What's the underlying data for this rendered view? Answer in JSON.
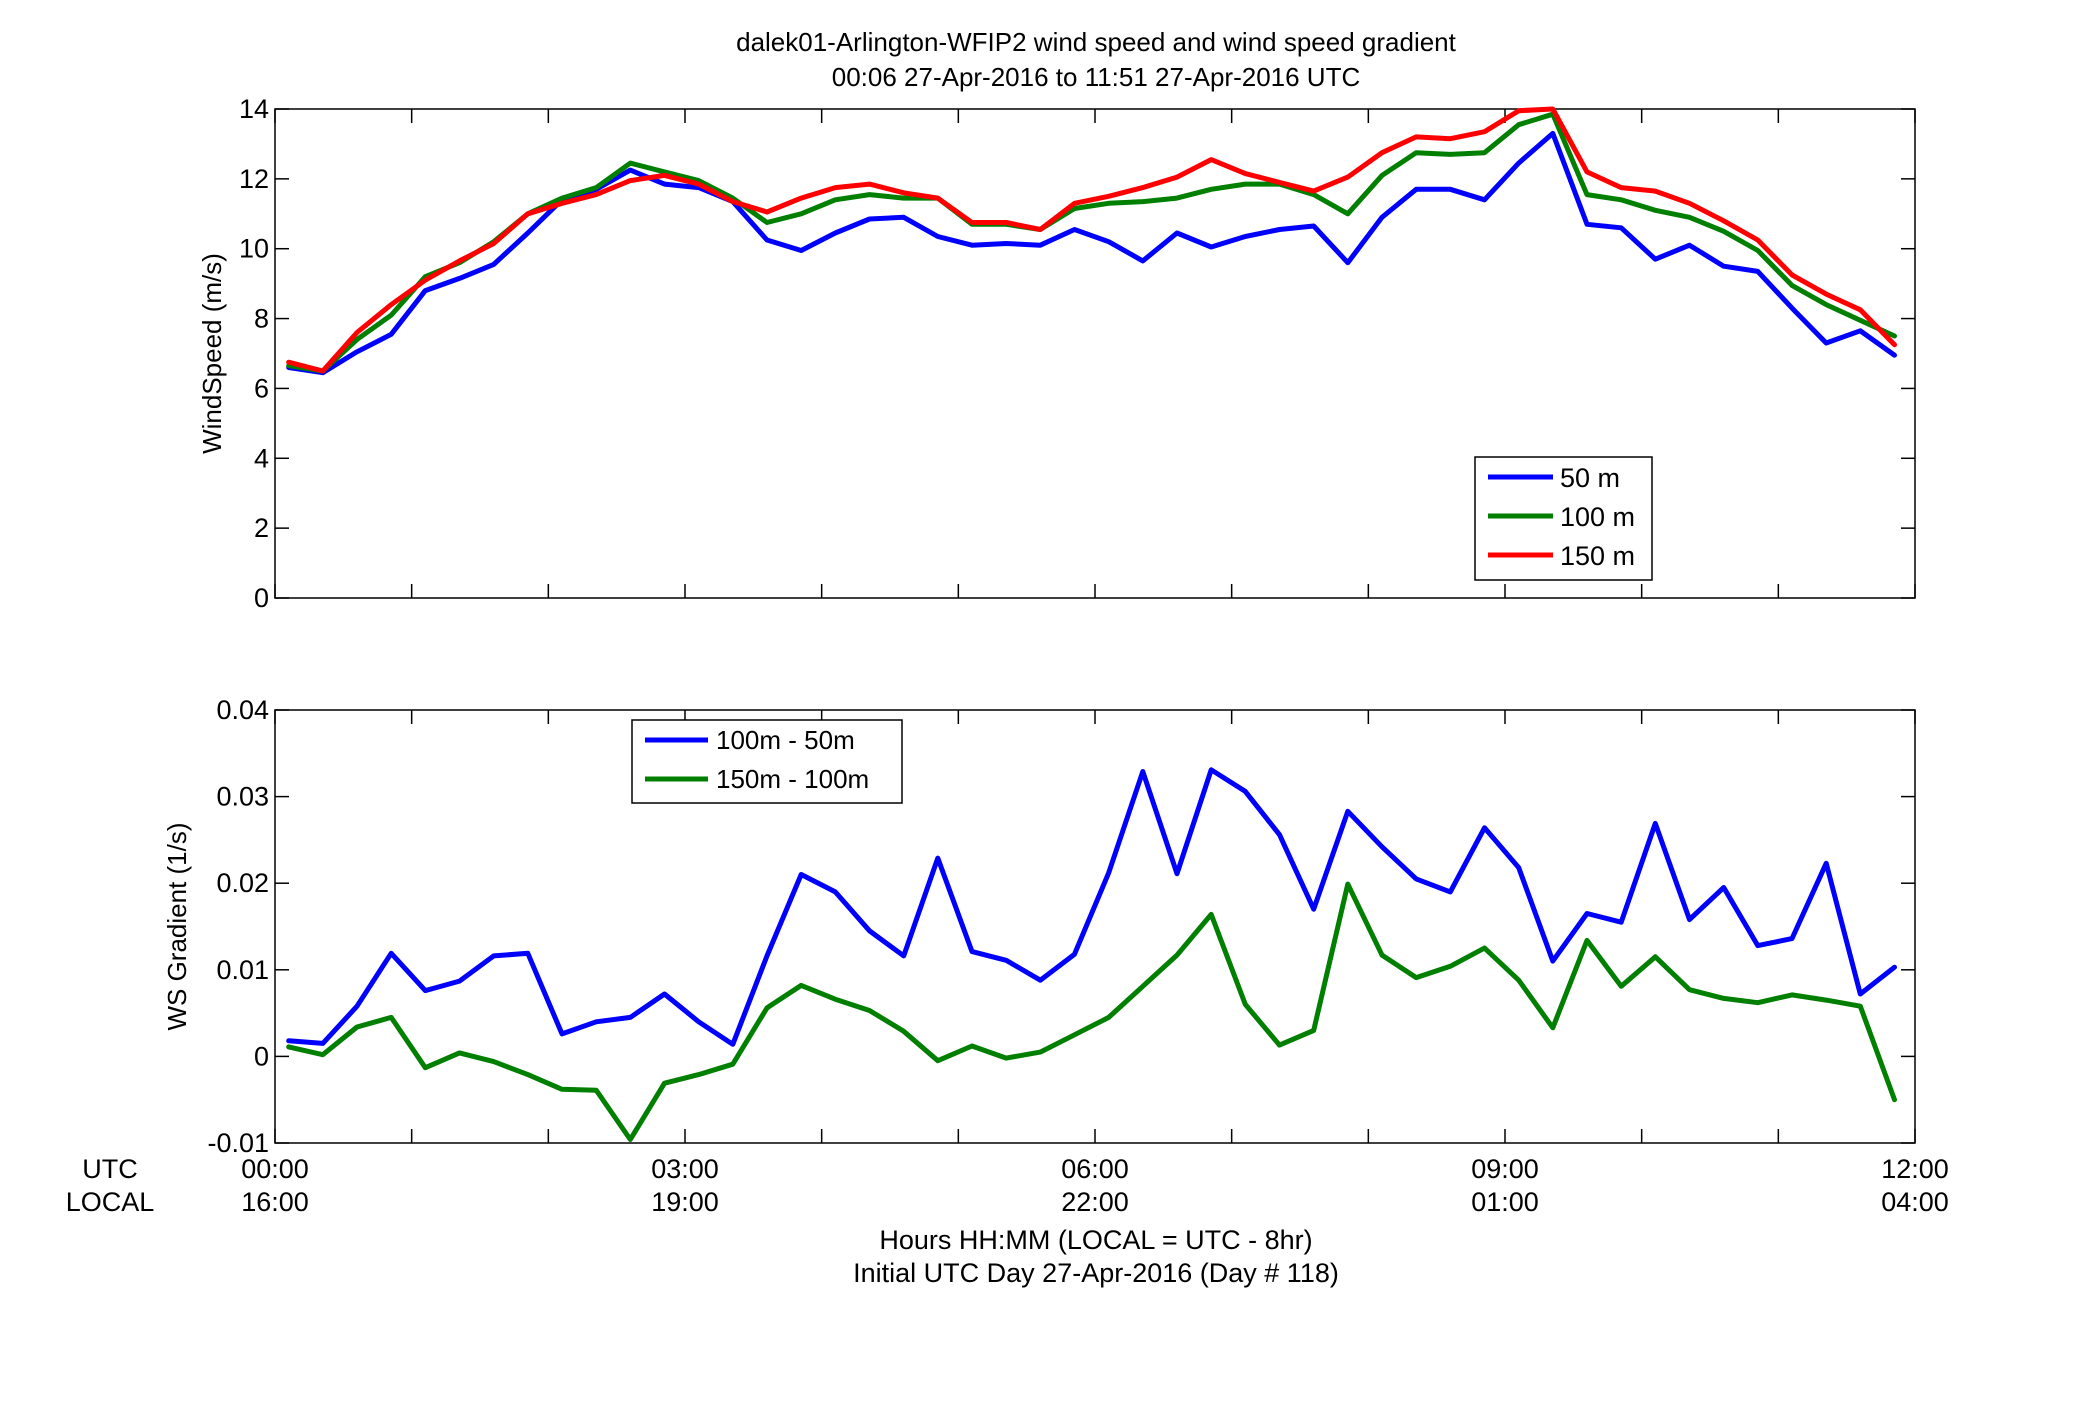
{
  "figure": {
    "title_line1": "dalek01-Arlington-WFIP2  wind speed and wind speed gradient",
    "title_line2": "00:06 27-Apr-2016 to 11:51 27-Apr-2016  UTC",
    "row_label_utc": "UTC",
    "row_label_local": "LOCAL",
    "xlabel_line1": "Hours HH:MM  (LOCAL = UTC - 8hr)",
    "xlabel_line2": "Initial UTC Day 27-Apr-2016 (Day # 118)",
    "x_ticks_utc": [
      "00:00",
      "03:00",
      "06:00",
      "09:00",
      "12:00"
    ],
    "x_ticks_local": [
      "16:00",
      "19:00",
      "22:00",
      "01:00",
      "04:00"
    ],
    "colors": {
      "blue": "#0000ff",
      "green": "#007f00",
      "red": "#ff0000"
    }
  },
  "chart_data": [
    {
      "type": "line",
      "ylabel": "WindSpeed (m/s)",
      "xlim": [
        0,
        12
      ],
      "ylim": [
        0,
        14
      ],
      "yticks": [
        "0",
        "2",
        "4",
        "6",
        "8",
        "10",
        "12",
        "14"
      ],
      "legend_position": "lower-right",
      "x": [
        0.1,
        0.35,
        0.6,
        0.85,
        1.1,
        1.35,
        1.6,
        1.85,
        2.1,
        2.35,
        2.6,
        2.85,
        3.1,
        3.35,
        3.6,
        3.85,
        4.1,
        4.35,
        4.6,
        4.85,
        5.1,
        5.35,
        5.6,
        5.85,
        6.1,
        6.35,
        6.6,
        6.85,
        7.1,
        7.35,
        7.6,
        7.85,
        8.1,
        8.35,
        8.6,
        8.85,
        9.1,
        9.35,
        9.6,
        9.85,
        10.1,
        10.35,
        10.6,
        10.85,
        11.1,
        11.35,
        11.6,
        11.85
      ],
      "series": [
        {
          "name": "50 m",
          "color": "#0000ff",
          "values": [
            6.6,
            6.45,
            7.05,
            7.55,
            8.8,
            9.15,
            9.55,
            10.45,
            11.4,
            11.7,
            12.25,
            11.85,
            11.75,
            11.35,
            10.25,
            9.95,
            10.45,
            10.85,
            10.9,
            10.35,
            10.1,
            10.15,
            10.1,
            10.55,
            10.2,
            9.65,
            10.45,
            10.05,
            10.35,
            10.55,
            10.65,
            9.6,
            10.9,
            11.7,
            11.7,
            11.4,
            12.45,
            13.3,
            10.7,
            10.6,
            9.7,
            10.1,
            9.5,
            9.35,
            8.3,
            7.3,
            7.65,
            6.95
          ]
        },
        {
          "name": "100 m",
          "color": "#007f00",
          "values": [
            6.65,
            6.5,
            7.4,
            8.1,
            9.2,
            9.6,
            10.2,
            11.0,
            11.45,
            11.75,
            12.45,
            12.2,
            11.95,
            11.45,
            10.75,
            11.0,
            11.4,
            11.55,
            11.45,
            11.45,
            10.7,
            10.7,
            10.55,
            11.15,
            11.3,
            11.35,
            11.45,
            11.7,
            11.85,
            11.85,
            11.55,
            11.0,
            12.1,
            12.75,
            12.7,
            12.75,
            13.55,
            13.85,
            11.55,
            11.4,
            11.1,
            10.9,
            10.5,
            9.95,
            8.95,
            8.4,
            7.95,
            7.5
          ]
        },
        {
          "name": "150 m",
          "color": "#ff0000",
          "values": [
            6.75,
            6.5,
            7.6,
            8.4,
            9.1,
            9.65,
            10.15,
            11.0,
            11.3,
            11.55,
            11.95,
            12.1,
            11.85,
            11.35,
            11.05,
            11.45,
            11.75,
            11.85,
            11.6,
            11.45,
            10.75,
            10.75,
            10.55,
            11.3,
            11.5,
            11.75,
            12.05,
            12.55,
            12.15,
            11.9,
            11.65,
            12.05,
            12.75,
            13.2,
            13.15,
            13.35,
            13.95,
            14.0,
            12.2,
            11.75,
            11.65,
            11.3,
            10.8,
            10.25,
            9.25,
            8.7,
            8.25,
            7.25
          ]
        }
      ]
    },
    {
      "type": "line",
      "ylabel": "WS Gradient (1/s)",
      "xlim": [
        0,
        12
      ],
      "ylim": [
        -0.01,
        0.04
      ],
      "yticks": [
        "-0.01",
        "0",
        "0.01",
        "0.02",
        "0.03",
        "0.04"
      ],
      "legend_position": "upper-left",
      "x": [
        0.1,
        0.35,
        0.6,
        0.85,
        1.1,
        1.35,
        1.6,
        1.85,
        2.1,
        2.35,
        2.6,
        2.85,
        3.1,
        3.35,
        3.6,
        3.85,
        4.1,
        4.35,
        4.6,
        4.85,
        5.1,
        5.35,
        5.6,
        5.85,
        6.1,
        6.35,
        6.6,
        6.85,
        7.1,
        7.35,
        7.6,
        7.85,
        8.1,
        8.35,
        8.6,
        8.85,
        9.1,
        9.35,
        9.6,
        9.85,
        10.1,
        10.35,
        10.6,
        10.85,
        11.1,
        11.35,
        11.6,
        11.85
      ],
      "series": [
        {
          "name": "100m - 50m",
          "color": "#0000ff",
          "values": [
            0.0018,
            0.0015,
            0.0058,
            0.0119,
            0.0076,
            0.0087,
            0.0116,
            0.0119,
            0.0026,
            0.004,
            0.0045,
            0.0072,
            0.004,
            0.0014,
            0.0116,
            0.021,
            0.019,
            0.0145,
            0.0116,
            0.0229,
            0.0121,
            0.0111,
            0.0088,
            0.0118,
            0.0212,
            0.0329,
            0.0211,
            0.0331,
            0.0306,
            0.0256,
            0.017,
            0.0283,
            0.0242,
            0.0205,
            0.019,
            0.0264,
            0.0218,
            0.011,
            0.0165,
            0.0155,
            0.0269,
            0.0158,
            0.0195,
            0.0128,
            0.0136,
            0.0223,
            0.0072,
            0.0103
          ]
        },
        {
          "name": "150m - 100m",
          "color": "#007f00",
          "values": [
            0.0011,
            0.0002,
            0.0034,
            0.0045,
            -0.0013,
            0.0004,
            -0.0006,
            -0.0021,
            -0.0038,
            -0.0039,
            -0.0096,
            -0.0031,
            -0.0021,
            -0.0009,
            0.0056,
            0.0082,
            0.0066,
            0.0053,
            0.0029,
            -0.0005,
            0.0012,
            -0.0002,
            0.0005,
            0.0025,
            0.0045,
            0.0081,
            0.0117,
            0.0164,
            0.006,
            0.0013,
            0.003,
            0.0199,
            0.0117,
            0.0091,
            0.0104,
            0.0125,
            0.0088,
            0.0033,
            0.0134,
            0.0081,
            0.0115,
            0.0077,
            0.0067,
            0.0062,
            0.0071,
            0.0065,
            0.0058,
            -0.005
          ]
        }
      ]
    }
  ]
}
